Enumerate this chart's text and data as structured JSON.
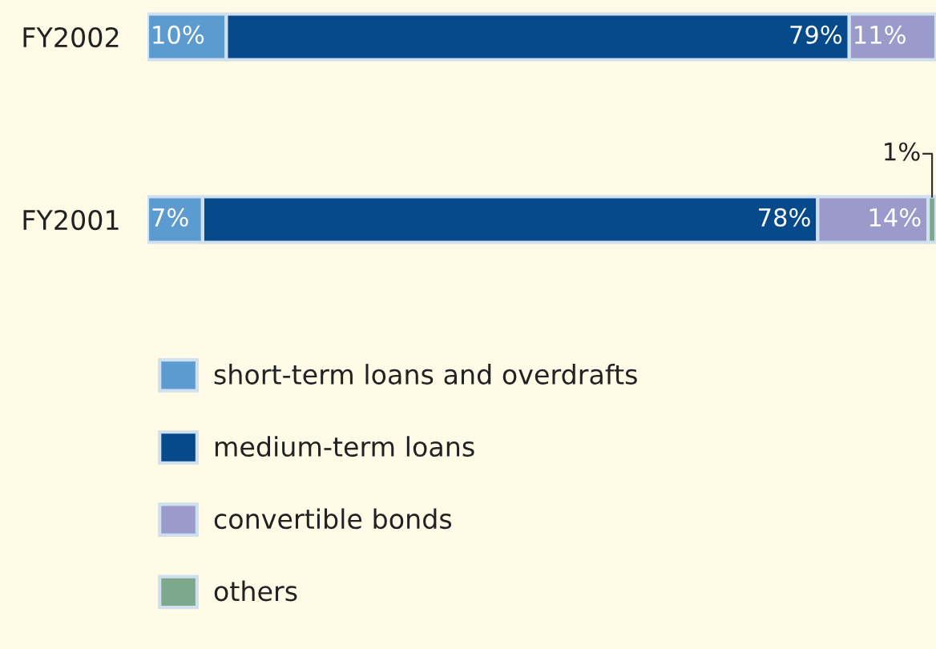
{
  "chart_data": {
    "type": "bar",
    "orientation": "horizontal",
    "stacked": true,
    "categories": [
      "FY2002",
      "FY2001"
    ],
    "series": [
      {
        "name": "short-term loans and overdrafts",
        "color": "#5b9bd0",
        "values": [
          10,
          7
        ],
        "value_labels": [
          "10%",
          "7%"
        ]
      },
      {
        "name": "medium-term loans",
        "color": "#064a8c",
        "values": [
          79,
          78
        ],
        "value_labels": [
          "79%",
          "78%"
        ]
      },
      {
        "name": "convertible bonds",
        "color": "#9a9acb",
        "values": [
          11,
          14
        ],
        "value_labels": [
          "11%",
          "14%"
        ]
      },
      {
        "name": "others",
        "color": "#7ea88e",
        "values": [
          null,
          1
        ],
        "value_labels": [
          null,
          "1%"
        ]
      }
    ],
    "xlim": [
      0,
      100
    ],
    "tick_labels": "y",
    "grid": false,
    "legend": "bottom left"
  }
}
